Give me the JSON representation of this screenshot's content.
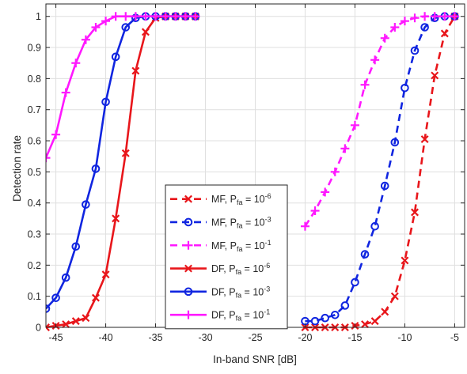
{
  "chart_data": {
    "type": "line",
    "xlabel": "In-band SNR [dB]",
    "ylabel": "Detection rate",
    "xlim": [
      -46,
      -4
    ],
    "ylim": [
      0,
      1.04
    ],
    "xticks": [
      -45,
      -40,
      -35,
      -30,
      -25,
      -20,
      -15,
      -10,
      -5
    ],
    "xtick_labels": [
      "-45",
      "-40",
      "-35",
      "-30",
      "-25",
      "-20",
      "-15",
      "-10",
      "-5"
    ],
    "yticks": [
      0,
      0.1,
      0.2,
      0.3,
      0.4,
      0.5,
      0.6,
      0.7,
      0.8,
      0.9,
      1
    ],
    "ytick_labels": [
      "0",
      "0.1",
      "0.2",
      "0.3",
      "0.4",
      "0.5",
      "0.6",
      "0.7",
      "0.8",
      "0.9",
      "1"
    ],
    "grid": true,
    "legend_position": "center-bottom",
    "series": [
      {
        "name": "MF, P_fa = 10^-6",
        "legend_base": "MF, P",
        "legend_sub": "fa",
        "legend_mid": " = 10",
        "legend_sup": "-6",
        "color": "#e8161b",
        "linestyle": "dashed",
        "marker": "x",
        "x": [
          -20,
          -19,
          -18,
          -17,
          -16,
          -15,
          -14,
          -13,
          -12,
          -11,
          -10,
          -9,
          -8,
          -7,
          -6,
          -5
        ],
        "y": [
          0.0,
          0.0,
          0.0,
          0.0,
          0.0,
          0.005,
          0.01,
          0.02,
          0.05,
          0.1,
          0.215,
          0.37,
          0.605,
          0.81,
          0.945,
          1.0
        ]
      },
      {
        "name": "MF, P_fa = 10^-3",
        "legend_base": "MF, P",
        "legend_sub": "fa",
        "legend_mid": " = 10",
        "legend_sup": "-3",
        "color": "#1025e0",
        "linestyle": "dashed",
        "marker": "o",
        "x": [
          -20,
          -19,
          -18,
          -17,
          -16,
          -15,
          -14,
          -13,
          -12,
          -11,
          -10,
          -9,
          -8,
          -7,
          -6,
          -5
        ],
        "y": [
          0.02,
          0.02,
          0.03,
          0.04,
          0.07,
          0.145,
          0.235,
          0.325,
          0.455,
          0.595,
          0.77,
          0.89,
          0.965,
          0.995,
          1.0,
          1.0
        ]
      },
      {
        "name": "MF, P_fa = 10^-1",
        "legend_base": "MF, P",
        "legend_sub": "fa",
        "legend_mid": " = 10",
        "legend_sup": "-1",
        "color": "#ff18ff",
        "linestyle": "dashed",
        "marker": "+",
        "x": [
          -20,
          -19,
          -18,
          -17,
          -16,
          -15,
          -14,
          -13,
          -12,
          -11,
          -10,
          -9,
          -8,
          -7,
          -6,
          -5
        ],
        "y": [
          0.325,
          0.375,
          0.435,
          0.5,
          0.575,
          0.65,
          0.78,
          0.86,
          0.93,
          0.965,
          0.985,
          0.995,
          1.0,
          1.0,
          1.0,
          1.0
        ]
      },
      {
        "name": "DF, P_fa = 10^-6",
        "legend_base": "DF, P",
        "legend_sub": "fa",
        "legend_mid": " = 10",
        "legend_sup": "-6",
        "color": "#e8161b",
        "linestyle": "solid",
        "marker": "x",
        "x": [
          -46,
          -45,
          -44,
          -43,
          -42,
          -41,
          -40,
          -39,
          -38,
          -37,
          -36,
          -35,
          -34,
          -33,
          -32,
          -31
        ],
        "y": [
          0.0,
          0.005,
          0.01,
          0.02,
          0.03,
          0.095,
          0.17,
          0.35,
          0.56,
          0.825,
          0.95,
          0.995,
          1.0,
          1.0,
          1.0,
          1.0
        ]
      },
      {
        "name": "DF, P_fa = 10^-3",
        "legend_base": "DF, P",
        "legend_sub": "fa",
        "legend_mid": " = 10",
        "legend_sup": "-3",
        "color": "#1025e0",
        "linestyle": "solid",
        "marker": "o",
        "x": [
          -46,
          -45,
          -44,
          -43,
          -42,
          -41,
          -40,
          -39,
          -38,
          -37,
          -36,
          -35,
          -34,
          -33,
          -32,
          -31
        ],
        "y": [
          0.06,
          0.095,
          0.16,
          0.26,
          0.395,
          0.51,
          0.725,
          0.87,
          0.965,
          0.995,
          1.0,
          1.0,
          1.0,
          1.0,
          1.0,
          1.0
        ]
      },
      {
        "name": "DF, P_fa = 10^-1",
        "legend_base": "DF, P",
        "legend_sub": "fa",
        "legend_mid": " = 10",
        "legend_sup": "-1",
        "color": "#ff18ff",
        "linestyle": "solid",
        "marker": "+",
        "x": [
          -46,
          -45,
          -44,
          -43,
          -42,
          -41,
          -40,
          -39,
          -38,
          -37,
          -36,
          -35,
          -34,
          -33,
          -32,
          -31
        ],
        "y": [
          0.545,
          0.62,
          0.755,
          0.85,
          0.925,
          0.965,
          0.985,
          1.0,
          1.0,
          1.0,
          1.0,
          1.0,
          1.0,
          1.0,
          1.0,
          1.0
        ]
      }
    ]
  }
}
